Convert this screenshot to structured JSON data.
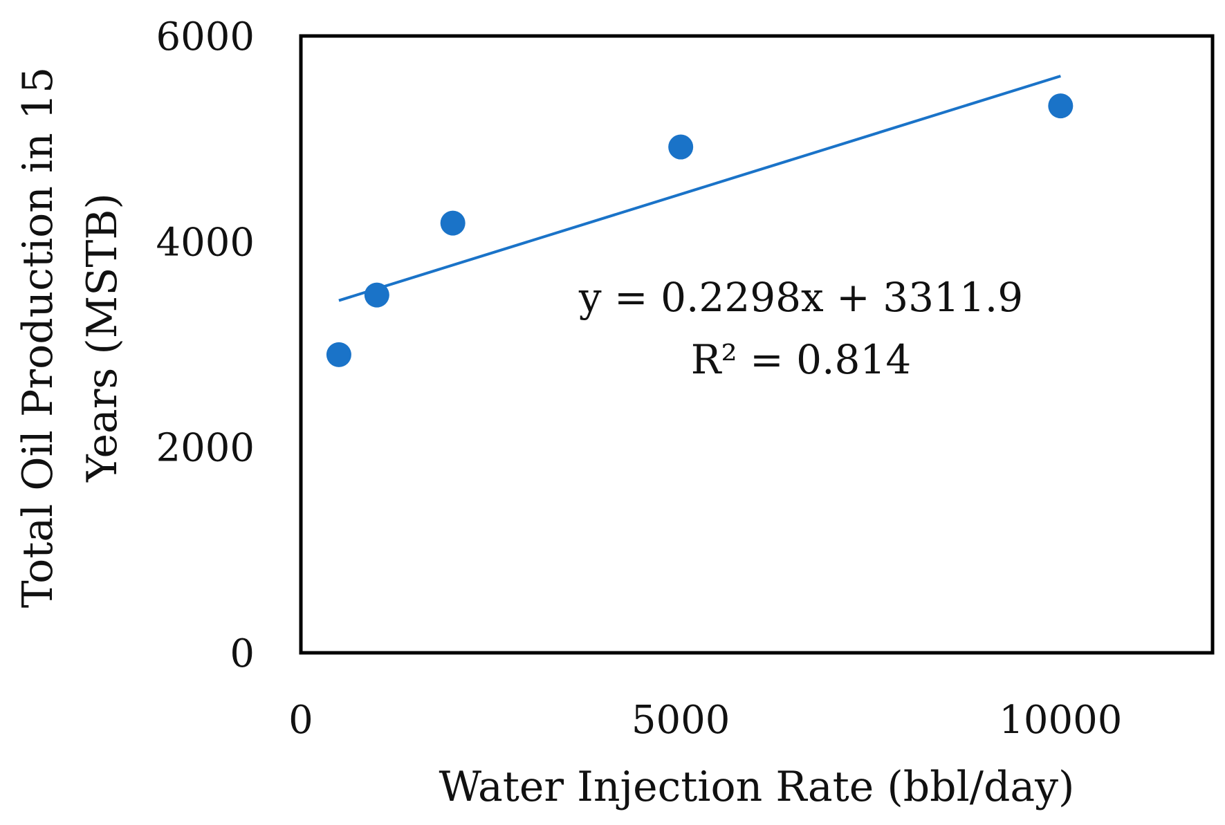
{
  "chart_data": {
    "type": "scatter",
    "title": "",
    "xlabel": "Water Injection Rate (bbl/day)",
    "ylabel_lines": [
      "Total Oil Production in 15",
      "Years (MSTB)"
    ],
    "xlim": [
      0,
      12000
    ],
    "ylim": [
      0,
      6000
    ],
    "x_ticks": [
      0,
      5000,
      10000
    ],
    "y_ticks": [
      0,
      2000,
      4000,
      6000
    ],
    "grid": false,
    "series": [
      {
        "name": "Total Oil Production",
        "x": [
          500,
          1000,
          2000,
          5000,
          10000
        ],
        "y": [
          2900,
          3480,
          4180,
          4920,
          5320
        ]
      }
    ],
    "trendline": {
      "slope": 0.2298,
      "intercept": 3311.9,
      "x_range": [
        500,
        10000
      ]
    },
    "annotations": {
      "equation": "y = 0.2298x + 3311.9",
      "r_squared": "R² = 0.814"
    },
    "colors": {
      "marker": "#1a73c8",
      "trendline": "#1a73c8",
      "axis": "#000000"
    }
  }
}
